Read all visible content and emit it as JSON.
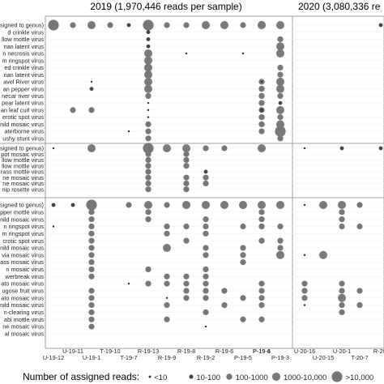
{
  "chart_data": {
    "type": "scatter",
    "encoding": "dot-matrix; dot size = number of assigned reads (bin 0..4)",
    "years": [
      {
        "label": "2019 (1,970,446 reads per sample)"
      },
      {
        "label": "2020 (3,080,336 re"
      }
    ],
    "samples": [
      "U-19-12",
      "U-19-11",
      "U-19-1",
      "T-19-10",
      "T-19-7",
      "R-19-13",
      "R-19-9",
      "R-19-8",
      "R-19-2",
      "R-19-6",
      "P-19-5",
      "P-19-6",
      "P-19-4",
      "P-19-3",
      "U-20-16",
      "U-20-15",
      "U-20-1",
      "T-20-7",
      "R-20-"
    ],
    "x_labels_row1": [
      "U-19-11",
      "T-19-10",
      "R-19-13",
      "R-19-8",
      "R-19-6",
      "P-19-6",
      "P-19-4",
      "U-20-16",
      "U-20-1",
      "R-20-"
    ],
    "x_labels_row2": [
      "U-19-12",
      "U-19-1",
      "T-19-7",
      "R-19-9",
      "R-19-2",
      "P-19-5",
      "P-19-3",
      "U-20-15",
      "T-20-7"
    ],
    "rows": [
      "ssigned to genus)",
      "d crinkle virus",
      "llow mottle virus",
      "rian latent virus",
      "n necrosis virus",
      "m ringspot virus",
      "ed crinkle virus",
      "rian latent virus",
      "avel River virus",
      "an pepper virus",
      "necar river virus",
      "pear latent virus",
      "an leaf curl virus",
      "erotic spot virus",
      "nild mosaic virus",
      "aterborne virus",
      "ushy stunt virus",
      "ssigned to genus)",
      "pot mosaic virus",
      "llow mottle virus",
      "llow mottle virus",
      "rass mottle virus",
      "ne mosaic virus",
      "ne mosaic virus",
      "nip rosette virus",
      "signed to genus)",
      "pper mottle virus",
      "nild mosaic virus",
      "n ringspot virus",
      "m ringspot virus",
      "crotic spot virus",
      "nild mosaic virus",
      "via mosaic virus",
      "ass mosaic virus",
      "n mosaic virus",
      "werbreak virus",
      "ato mosaic virus",
      "ugose fruit virus",
      "ato mosaic virus",
      "nild mosaic virus",
      "n-clearing virus",
      "abi mottle virus",
      "ne mosaic virus",
      "al mosaic virus"
    ],
    "panels": [
      {
        "first_row": 0,
        "last_row": 16
      },
      {
        "first_row": 17,
        "last_row": 24
      },
      {
        "first_row": 25,
        "last_row": 43
      }
    ],
    "legend": {
      "title": "Number of assigned reads:",
      "bins": [
        "<10",
        "10-100",
        "100-1000",
        "1000-10,000",
        ">10,000"
      ]
    },
    "points": [
      [
        0,
        0,
        4
      ],
      [
        0,
        1,
        2
      ],
      [
        0,
        2,
        3
      ],
      [
        0,
        3,
        2
      ],
      [
        0,
        4,
        1
      ],
      [
        0,
        5,
        4
      ],
      [
        0,
        6,
        2
      ],
      [
        0,
        7,
        2
      ],
      [
        0,
        8,
        3
      ],
      [
        0,
        9,
        3
      ],
      [
        0,
        10,
        2
      ],
      [
        0,
        11,
        3
      ],
      [
        0,
        12,
        3
      ],
      [
        0,
        13,
        3
      ],
      [
        0,
        18,
        1
      ],
      [
        1,
        5,
        1
      ],
      [
        2,
        5,
        1
      ],
      [
        2,
        13,
        2
      ],
      [
        3,
        5,
        1
      ],
      [
        3,
        13,
        3
      ],
      [
        4,
        5,
        3
      ],
      [
        4,
        7,
        0
      ],
      [
        4,
        10,
        0
      ],
      [
        4,
        13,
        3
      ],
      [
        5,
        5,
        3
      ],
      [
        6,
        5,
        3
      ],
      [
        6,
        13,
        2
      ],
      [
        7,
        5,
        3
      ],
      [
        7,
        13,
        2
      ],
      [
        8,
        2,
        0
      ],
      [
        8,
        5,
        3
      ],
      [
        8,
        11,
        2
      ],
      [
        8,
        12,
        0
      ],
      [
        8,
        13,
        3
      ],
      [
        9,
        2,
        1
      ],
      [
        9,
        5,
        3
      ],
      [
        9,
        11,
        2
      ],
      [
        9,
        12,
        2
      ],
      [
        9,
        13,
        3
      ],
      [
        10,
        5,
        2
      ],
      [
        10,
        11,
        2
      ],
      [
        10,
        12,
        2
      ],
      [
        10,
        13,
        2
      ],
      [
        11,
        5,
        0
      ],
      [
        11,
        11,
        2
      ],
      [
        11,
        12,
        2
      ],
      [
        11,
        13,
        1
      ],
      [
        12,
        1,
        2
      ],
      [
        12,
        2,
        2
      ],
      [
        12,
        5,
        0
      ],
      [
        12,
        11,
        2
      ],
      [
        12,
        12,
        1
      ],
      [
        12,
        13,
        3
      ],
      [
        13,
        5,
        0
      ],
      [
        13,
        11,
        2
      ],
      [
        13,
        12,
        2
      ],
      [
        13,
        13,
        2
      ],
      [
        14,
        5,
        2
      ],
      [
        14,
        11,
        2
      ],
      [
        14,
        12,
        2
      ],
      [
        14,
        13,
        3
      ],
      [
        15,
        4,
        0
      ],
      [
        15,
        5,
        2
      ],
      [
        15,
        11,
        2
      ],
      [
        15,
        13,
        4
      ],
      [
        16,
        5,
        2
      ],
      [
        16,
        13,
        2
      ],
      [
        17,
        0,
        0
      ],
      [
        17,
        2,
        3
      ],
      [
        17,
        5,
        4
      ],
      [
        17,
        6,
        3
      ],
      [
        17,
        7,
        3
      ],
      [
        17,
        8,
        2
      ],
      [
        17,
        9,
        2
      ],
      [
        17,
        11,
        2
      ],
      [
        17,
        12,
        3
      ],
      [
        17,
        14,
        0
      ],
      [
        17,
        16,
        1
      ],
      [
        17,
        18,
        1
      ],
      [
        18,
        5,
        2
      ],
      [
        18,
        7,
        2
      ],
      [
        19,
        5,
        2
      ],
      [
        19,
        7,
        2
      ],
      [
        20,
        5,
        2
      ],
      [
        20,
        7,
        2
      ],
      [
        21,
        5,
        2
      ],
      [
        21,
        8,
        1
      ],
      [
        22,
        5,
        2
      ],
      [
        22,
        7,
        2
      ],
      [
        22,
        8,
        2
      ],
      [
        23,
        5,
        2
      ],
      [
        23,
        7,
        2
      ],
      [
        23,
        8,
        2
      ],
      [
        24,
        5,
        2
      ],
      [
        24,
        7,
        2
      ],
      [
        25,
        0,
        1
      ],
      [
        25,
        1,
        1
      ],
      [
        25,
        2,
        4
      ],
      [
        25,
        4,
        2
      ],
      [
        25,
        5,
        3
      ],
      [
        25,
        6,
        2
      ],
      [
        25,
        7,
        3
      ],
      [
        25,
        8,
        3
      ],
      [
        25,
        9,
        3
      ],
      [
        25,
        10,
        3
      ],
      [
        25,
        11,
        2
      ],
      [
        25,
        12,
        3
      ],
      [
        25,
        13,
        3
      ],
      [
        25,
        14,
        0
      ],
      [
        25,
        15,
        3
      ],
      [
        25,
        16,
        3
      ],
      [
        25,
        17,
        2
      ],
      [
        26,
        2,
        2
      ],
      [
        26,
        5,
        2
      ],
      [
        26,
        11,
        2
      ],
      [
        26,
        16,
        2
      ],
      [
        27,
        2,
        2
      ],
      [
        27,
        5,
        2
      ],
      [
        27,
        8,
        2
      ],
      [
        27,
        11,
        2
      ],
      [
        27,
        16,
        2
      ],
      [
        28,
        0,
        0
      ],
      [
        28,
        2,
        2
      ],
      [
        28,
        6,
        2
      ],
      [
        28,
        7,
        2
      ],
      [
        28,
        8,
        2
      ],
      [
        28,
        10,
        2
      ],
      [
        28,
        11,
        2
      ],
      [
        28,
        12,
        2
      ],
      [
        28,
        13,
        2
      ],
      [
        28,
        16,
        2
      ],
      [
        28,
        17,
        2
      ],
      [
        29,
        2,
        2
      ],
      [
        29,
        6,
        2
      ],
      [
        29,
        8,
        2
      ],
      [
        30,
        2,
        2
      ],
      [
        30,
        7,
        2
      ],
      [
        30,
        11,
        2
      ],
      [
        30,
        12,
        2
      ],
      [
        30,
        13,
        2
      ],
      [
        31,
        2,
        2
      ],
      [
        31,
        6,
        3
      ],
      [
        31,
        8,
        2
      ],
      [
        31,
        10,
        2
      ],
      [
        31,
        13,
        2
      ],
      [
        32,
        2,
        2
      ],
      [
        32,
        8,
        2
      ],
      [
        32,
        10,
        2
      ],
      [
        32,
        13,
        3
      ],
      [
        32,
        14,
        0
      ],
      [
        32,
        15,
        3
      ],
      [
        33,
        2,
        2
      ],
      [
        33,
        10,
        2
      ],
      [
        34,
        2,
        2
      ],
      [
        34,
        5,
        2
      ],
      [
        34,
        8,
        2
      ],
      [
        35,
        2,
        2
      ],
      [
        35,
        6,
        2
      ],
      [
        35,
        7,
        2
      ],
      [
        35,
        8,
        2
      ],
      [
        36,
        4,
        0
      ],
      [
        36,
        5,
        2
      ],
      [
        36,
        6,
        2
      ],
      [
        36,
        7,
        2
      ],
      [
        36,
        8,
        2
      ],
      [
        36,
        11,
        2
      ],
      [
        36,
        14,
        2
      ],
      [
        36,
        16,
        2
      ],
      [
        37,
        2,
        2
      ],
      [
        37,
        7,
        2
      ],
      [
        37,
        8,
        2
      ],
      [
        37,
        9,
        2
      ],
      [
        37,
        12,
        2
      ],
      [
        37,
        14,
        2
      ],
      [
        37,
        16,
        2
      ],
      [
        37,
        17,
        2
      ],
      [
        38,
        2,
        2
      ],
      [
        38,
        6,
        0
      ],
      [
        38,
        7,
        2
      ],
      [
        38,
        8,
        2
      ],
      [
        38,
        10,
        2
      ],
      [
        38,
        11,
        2
      ],
      [
        38,
        14,
        2
      ],
      [
        38,
        16,
        3
      ],
      [
        39,
        2,
        2
      ],
      [
        39,
        6,
        2
      ],
      [
        39,
        9,
        2
      ],
      [
        39,
        12,
        2
      ],
      [
        39,
        14,
        0
      ],
      [
        39,
        16,
        2
      ],
      [
        39,
        17,
        2
      ],
      [
        40,
        2,
        2
      ],
      [
        40,
        8,
        2
      ],
      [
        40,
        16,
        2
      ],
      [
        41,
        2,
        2
      ],
      [
        41,
        6,
        2
      ],
      [
        41,
        10,
        2
      ],
      [
        41,
        12,
        2
      ],
      [
        42,
        2,
        2
      ],
      [
        42,
        8,
        0
      ]
    ]
  }
}
